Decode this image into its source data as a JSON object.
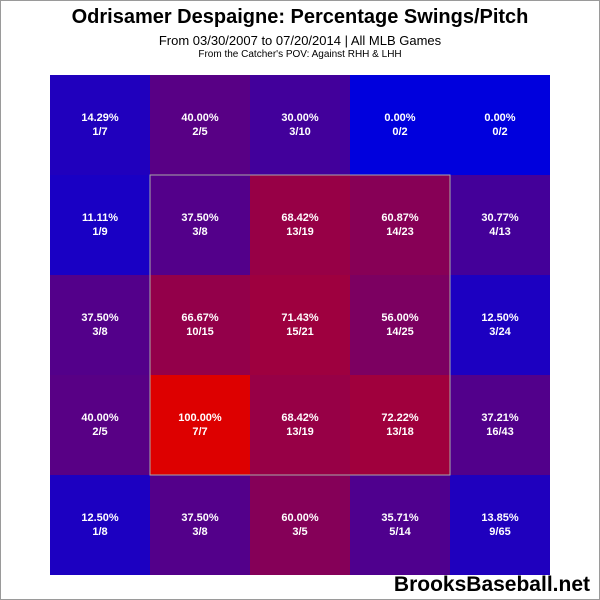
{
  "header": {
    "title": "Odrisamer Despaigne: Percentage Swings/Pitch",
    "subtitle": "From 03/30/2007 to 07/20/2014 | All MLB Games",
    "subtitle2": "From the Catcher's POV:  Against RHH & LHH"
  },
  "watermark": "BrooksBaseball.net",
  "colors": {
    "low": "#0000dd",
    "high": "#dd0000",
    "zone_outline": "#a8a8a8"
  },
  "chart_data": {
    "type": "heatmap",
    "title": "Odrisamer Despaigne: Percentage Swings/Pitch",
    "rows": 5,
    "cols": 5,
    "strike_zone": {
      "row_start": 1,
      "row_end": 3,
      "col_start": 1,
      "col_end": 3
    },
    "cells": [
      [
        {
          "pct": "14.29%",
          "frac": "1/7",
          "value": 14.29
        },
        {
          "pct": "40.00%",
          "frac": "2/5",
          "value": 40.0
        },
        {
          "pct": "30.00%",
          "frac": "3/10",
          "value": 30.0
        },
        {
          "pct": "0.00%",
          "frac": "0/2",
          "value": 0.0
        },
        {
          "pct": "0.00%",
          "frac": "0/2",
          "value": 0.0
        }
      ],
      [
        {
          "pct": "11.11%",
          "frac": "1/9",
          "value": 11.11
        },
        {
          "pct": "37.50%",
          "frac": "3/8",
          "value": 37.5
        },
        {
          "pct": "68.42%",
          "frac": "13/19",
          "value": 68.42
        },
        {
          "pct": "60.87%",
          "frac": "14/23",
          "value": 60.87
        },
        {
          "pct": "30.77%",
          "frac": "4/13",
          "value": 30.77
        }
      ],
      [
        {
          "pct": "37.50%",
          "frac": "3/8",
          "value": 37.5
        },
        {
          "pct": "66.67%",
          "frac": "10/15",
          "value": 66.67
        },
        {
          "pct": "71.43%",
          "frac": "15/21",
          "value": 71.43
        },
        {
          "pct": "56.00%",
          "frac": "14/25",
          "value": 56.0
        },
        {
          "pct": "12.50%",
          "frac": "3/24",
          "value": 12.5
        }
      ],
      [
        {
          "pct": "40.00%",
          "frac": "2/5",
          "value": 40.0
        },
        {
          "pct": "100.00%",
          "frac": "7/7",
          "value": 100.0
        },
        {
          "pct": "68.42%",
          "frac": "13/19",
          "value": 68.42
        },
        {
          "pct": "72.22%",
          "frac": "13/18",
          "value": 72.22
        },
        {
          "pct": "37.21%",
          "frac": "16/43",
          "value": 37.21
        }
      ],
      [
        {
          "pct": "12.50%",
          "frac": "1/8",
          "value": 12.5
        },
        {
          "pct": "37.50%",
          "frac": "3/8",
          "value": 37.5
        },
        {
          "pct": "60.00%",
          "frac": "3/5",
          "value": 60.0
        },
        {
          "pct": "35.71%",
          "frac": "5/14",
          "value": 35.71
        },
        {
          "pct": "13.85%",
          "frac": "9/65",
          "value": 13.85
        }
      ]
    ]
  }
}
